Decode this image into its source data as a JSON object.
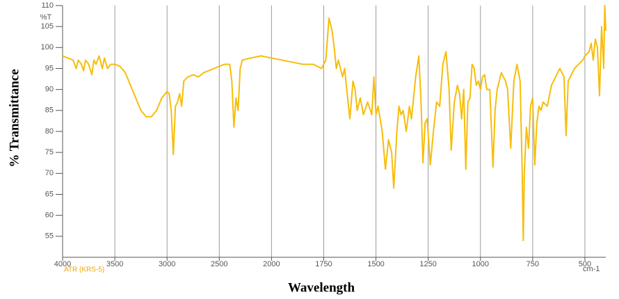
{
  "chart_data": {
    "type": "line",
    "y_label": "% Transmittance",
    "x_label": "Wavelength",
    "y_unit": "%T",
    "x_unit": "cm-1",
    "annotation": "ATR (KRS-5)",
    "color": "#f7bd0a",
    "xlim": [
      4000,
      400
    ],
    "x_scale_break": {
      "at": 2000,
      "ratio": 2
    },
    "xticks": [
      4000,
      3500,
      3000,
      2500,
      2000,
      1750,
      1500,
      1250,
      1000,
      750,
      500
    ],
    "ylim": [
      50,
      110
    ],
    "yticks": [
      55,
      60,
      65,
      70,
      75,
      80,
      85,
      90,
      95,
      100,
      105,
      110
    ],
    "grid": true,
    "x": [
      4000,
      3950,
      3900,
      3870,
      3850,
      3820,
      3800,
      3780,
      3750,
      3720,
      3700,
      3680,
      3650,
      3620,
      3600,
      3570,
      3540,
      3500,
      3450,
      3400,
      3350,
      3300,
      3250,
      3200,
      3150,
      3100,
      3050,
      3000,
      2980,
      2960,
      2940,
      2920,
      2900,
      2880,
      2860,
      2840,
      2800,
      2750,
      2700,
      2650,
      2600,
      2550,
      2500,
      2450,
      2400,
      2380,
      2360,
      2340,
      2320,
      2300,
      2280,
      2200,
      2100,
      2000,
      1950,
      1900,
      1850,
      1800,
      1760,
      1740,
      1725,
      1710,
      1700,
      1690,
      1680,
      1660,
      1650,
      1640,
      1625,
      1610,
      1600,
      1590,
      1575,
      1560,
      1540,
      1520,
      1510,
      1500,
      1490,
      1470,
      1455,
      1440,
      1425,
      1415,
      1400,
      1390,
      1380,
      1370,
      1355,
      1340,
      1330,
      1310,
      1295,
      1285,
      1275,
      1265,
      1255,
      1240,
      1225,
      1210,
      1195,
      1180,
      1165,
      1150,
      1140,
      1125,
      1110,
      1100,
      1090,
      1080,
      1070,
      1060,
      1050,
      1040,
      1030,
      1020,
      1010,
      1000,
      990,
      980,
      970,
      955,
      940,
      930,
      920,
      900,
      880,
      870,
      855,
      840,
      825,
      810,
      800,
      795,
      790,
      780,
      770,
      760,
      750,
      740,
      730,
      720,
      710,
      700,
      680,
      660,
      640,
      620,
      610,
      600,
      590,
      580,
      570,
      550,
      530,
      510,
      500,
      480,
      470,
      460,
      450,
      440,
      430,
      420,
      410,
      405,
      400
    ],
    "values": [
      98,
      97.5,
      97,
      95,
      97,
      96,
      94.5,
      97,
      96,
      93.5,
      97,
      96,
      98,
      95,
      97.5,
      95,
      96,
      96,
      95.5,
      94,
      91,
      88,
      85,
      83.5,
      83.5,
      85,
      88,
      89.5,
      89,
      85,
      74.5,
      86,
      87,
      89,
      86,
      92,
      93,
      93.5,
      93,
      94,
      94.5,
      95,
      95.5,
      96,
      96,
      92,
      81,
      88,
      85,
      95,
      97,
      97.5,
      98,
      97.5,
      97,
      96.5,
      96,
      96,
      95,
      97,
      107,
      104,
      100,
      95,
      97,
      93,
      95,
      90,
      83,
      92,
      90,
      85,
      88,
      84,
      87,
      84,
      93,
      84,
      86,
      80,
      71,
      78,
      75,
      66.5,
      80,
      86,
      84,
      85,
      80,
      86,
      83,
      93,
      98,
      88,
      72.5,
      82,
      83,
      72,
      80,
      87,
      86,
      96,
      99,
      90,
      75.5,
      87,
      91,
      89,
      83,
      90,
      71,
      87,
      88,
      96,
      95,
      91,
      92,
      90,
      93,
      93.5,
      90,
      90,
      71.5,
      85,
      90,
      94,
      92,
      90,
      76,
      92,
      96,
      92,
      70,
      54,
      70,
      81,
      76,
      86,
      88,
      72,
      82,
      86,
      85,
      87,
      86,
      91,
      93,
      95,
      94,
      93,
      79,
      92,
      93,
      95,
      96,
      97,
      98,
      99,
      101,
      97,
      102,
      100,
      88.5,
      105,
      95,
      110,
      104
    ]
  }
}
